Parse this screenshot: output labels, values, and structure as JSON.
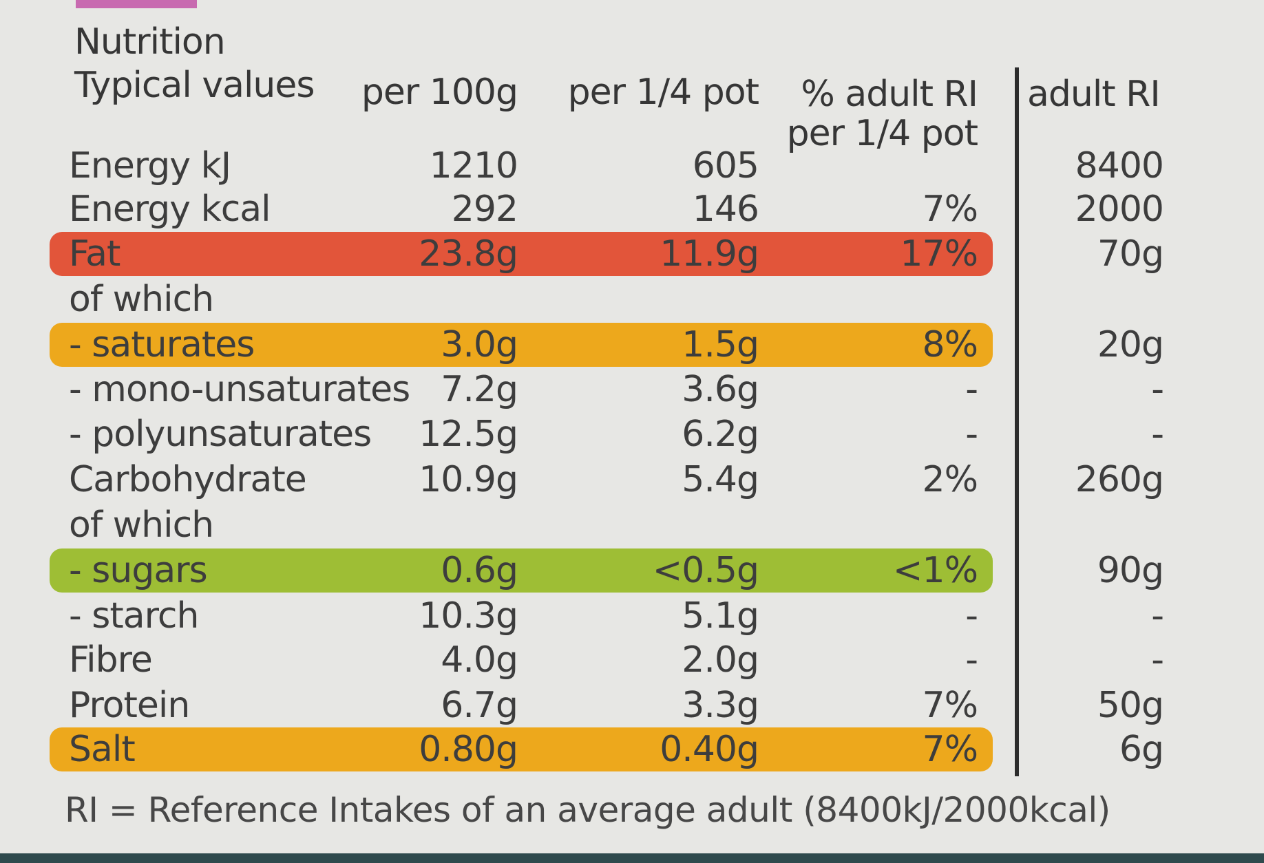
{
  "label": {
    "title": "Nutrition",
    "headers": {
      "typical": "Typical values",
      "per100": "per 100g",
      "perQuarter": "per 1/4 pot",
      "pctRi_1": "% adult RI",
      "pctRi_2": "per 1/4 pot",
      "adultRi": "adult RI"
    },
    "rows": [
      {
        "name": "Energy kJ",
        "per100": "1210",
        "perQuarter": "605",
        "pct": "",
        "ri": "8400",
        "band": ""
      },
      {
        "name": "Energy kcal",
        "per100": "292",
        "perQuarter": "146",
        "pct": "7%",
        "ri": "2000",
        "band": ""
      },
      {
        "name": "Fat",
        "per100": "23.8g",
        "perQuarter": "11.9g",
        "pct": "17%",
        "ri": "70g",
        "band": "#e2553a"
      },
      {
        "name": "of which",
        "per100": "",
        "perQuarter": "",
        "pct": "",
        "ri": "",
        "band": ""
      },
      {
        "name": "- saturates",
        "per100": "3.0g",
        "perQuarter": "1.5g",
        "pct": "8%",
        "ri": "20g",
        "band": "#eda81c"
      },
      {
        "name": "- mono-unsaturates",
        "per100": "7.2g",
        "perQuarter": "3.6g",
        "pct": "-",
        "ri": "-",
        "band": ""
      },
      {
        "name": "- polyunsaturates",
        "per100": "12.5g",
        "perQuarter": "6.2g",
        "pct": "-",
        "ri": "-",
        "band": ""
      },
      {
        "name": "Carbohydrate",
        "per100": "10.9g",
        "perQuarter": "5.4g",
        "pct": "2%",
        "ri": "260g",
        "band": ""
      },
      {
        "name": "of which",
        "per100": "",
        "perQuarter": "",
        "pct": "",
        "ri": "",
        "band": ""
      },
      {
        "name": "- sugars",
        "per100": "0.6g",
        "perQuarter": "<0.5g",
        "pct": "<1%",
        "ri": "90g",
        "band": "#9ebe35"
      },
      {
        "name": "- starch",
        "per100": "10.3g",
        "perQuarter": "5.1g",
        "pct": "-",
        "ri": "-",
        "band": ""
      },
      {
        "name": "Fibre",
        "per100": "4.0g",
        "perQuarter": "2.0g",
        "pct": "-",
        "ri": "-",
        "band": ""
      },
      {
        "name": "Protein",
        "per100": "6.7g",
        "perQuarter": "3.3g",
        "pct": "7%",
        "ri": "50g",
        "band": ""
      },
      {
        "name": "Salt",
        "per100": "0.80g",
        "perQuarter": "0.40g",
        "pct": "7%",
        "ri": "6g",
        "band": "#eda81c"
      }
    ],
    "footnote": "RI = Reference Intakes of an average adult (8400kJ/2000kcal)"
  },
  "colors": {
    "card": "#e7e7e4",
    "text": "#3d3d3d",
    "fat": "#e2553a",
    "amber": "#eda81c",
    "green": "#9ebe35"
  }
}
